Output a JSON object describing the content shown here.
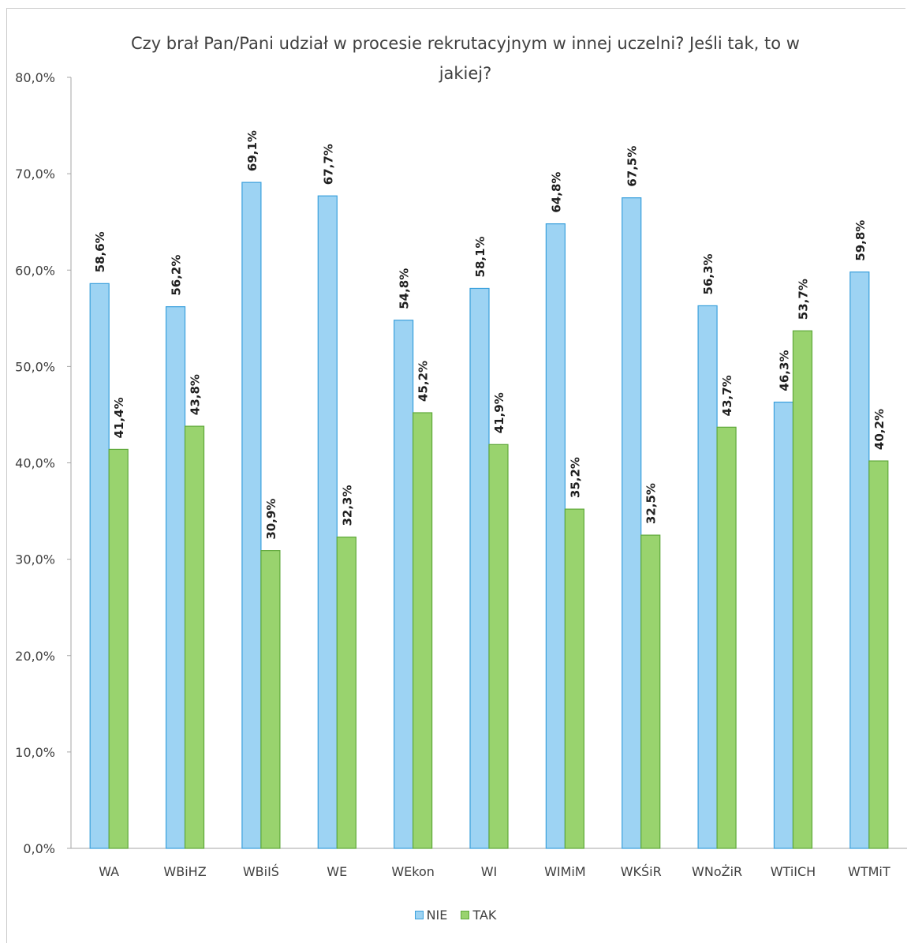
{
  "chart_data": {
    "type": "bar",
    "title": "Czy brał Pan/Pani udział w procesie rekrutacyjnym w innej uczelni? Jeśli tak, to w jakiej?",
    "categories": [
      "WA",
      "WBiHZ",
      "WBiIŚ",
      "WE",
      "WEkon",
      "WI",
      "WIMiM",
      "WKŚiR",
      "WNoŻiR",
      "WTiICH",
      "WTMiT"
    ],
    "series": [
      {
        "name": "NIE",
        "values": [
          58.6,
          56.2,
          69.1,
          67.7,
          54.8,
          58.1,
          64.8,
          67.5,
          56.3,
          46.3,
          59.8
        ],
        "labels": [
          "58,6%",
          "56,2%",
          "69,1%",
          "67,7%",
          "54,8%",
          "58,1%",
          "64,8%",
          "67,5%",
          "56,3%",
          "46,3%",
          "59,8%"
        ]
      },
      {
        "name": "TAK",
        "values": [
          41.4,
          43.8,
          30.9,
          32.3,
          45.2,
          41.9,
          35.2,
          32.5,
          43.7,
          53.7,
          40.2
        ],
        "labels": [
          "41,4%",
          "43,8%",
          "30,9%",
          "32,3%",
          "45,2%",
          "41,9%",
          "35,2%",
          "32,5%",
          "43,7%",
          "53,7%",
          "40,2%"
        ]
      }
    ],
    "ylim": [
      0,
      80
    ],
    "yticks": [
      0,
      10,
      20,
      30,
      40,
      50,
      60,
      70,
      80
    ],
    "ytick_labels": [
      "0,0%",
      "10,0%",
      "20,0%",
      "30,0%",
      "40,0%",
      "50,0%",
      "60,0%",
      "70,0%",
      "80,0%"
    ],
    "xlabel": "",
    "ylabel": "",
    "legend_position": "bottom",
    "grid": false
  },
  "colors": {
    "NIE_fill": "#9dd3f3",
    "NIE_stroke": "#3aa0dc",
    "TAK_fill": "#99d36e",
    "TAK_stroke": "#5fa83a",
    "axis": "#a6a6a6",
    "text": "#404040"
  }
}
